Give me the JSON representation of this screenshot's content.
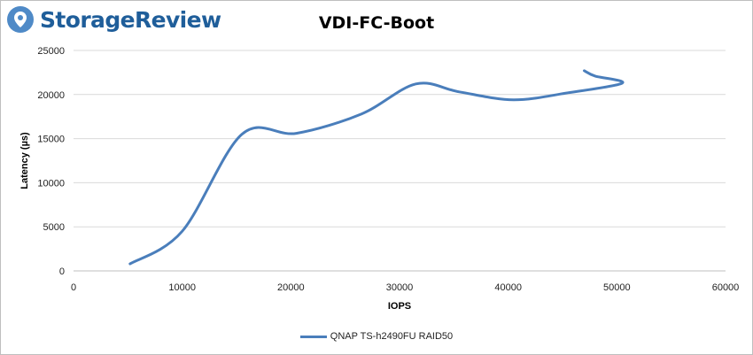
{
  "brand": {
    "name": "StorageReview",
    "logo_color": "#4f8ac7",
    "text_color": "#1f5e9a"
  },
  "chart_data": {
    "type": "line",
    "title": "VDI-FC-Boot",
    "xlabel": "IOPS",
    "ylabel": "Latency (µs)",
    "xlim": [
      0,
      60000
    ],
    "ylim": [
      0,
      25000
    ],
    "xticks": [
      0,
      10000,
      20000,
      30000,
      40000,
      50000,
      60000
    ],
    "yticks": [
      0,
      5000,
      10000,
      15000,
      20000,
      25000
    ],
    "grid": "horizontal",
    "legend_position": "bottom",
    "series": [
      {
        "name": "QNAP TS-h2490FU RAID50",
        "color": "#4a7ebb",
        "points": [
          {
            "x": 5200,
            "y": 800
          },
          {
            "x": 10000,
            "y": 4500
          },
          {
            "x": 15500,
            "y": 15500
          },
          {
            "x": 20500,
            "y": 15600
          },
          {
            "x": 26500,
            "y": 17800
          },
          {
            "x": 31500,
            "y": 21200
          },
          {
            "x": 35500,
            "y": 20300
          },
          {
            "x": 40500,
            "y": 19400
          },
          {
            "x": 45500,
            "y": 20200
          },
          {
            "x": 50500,
            "y": 21300
          },
          {
            "x": 48000,
            "y": 22100
          },
          {
            "x": 47000,
            "y": 22700
          }
        ]
      }
    ]
  }
}
